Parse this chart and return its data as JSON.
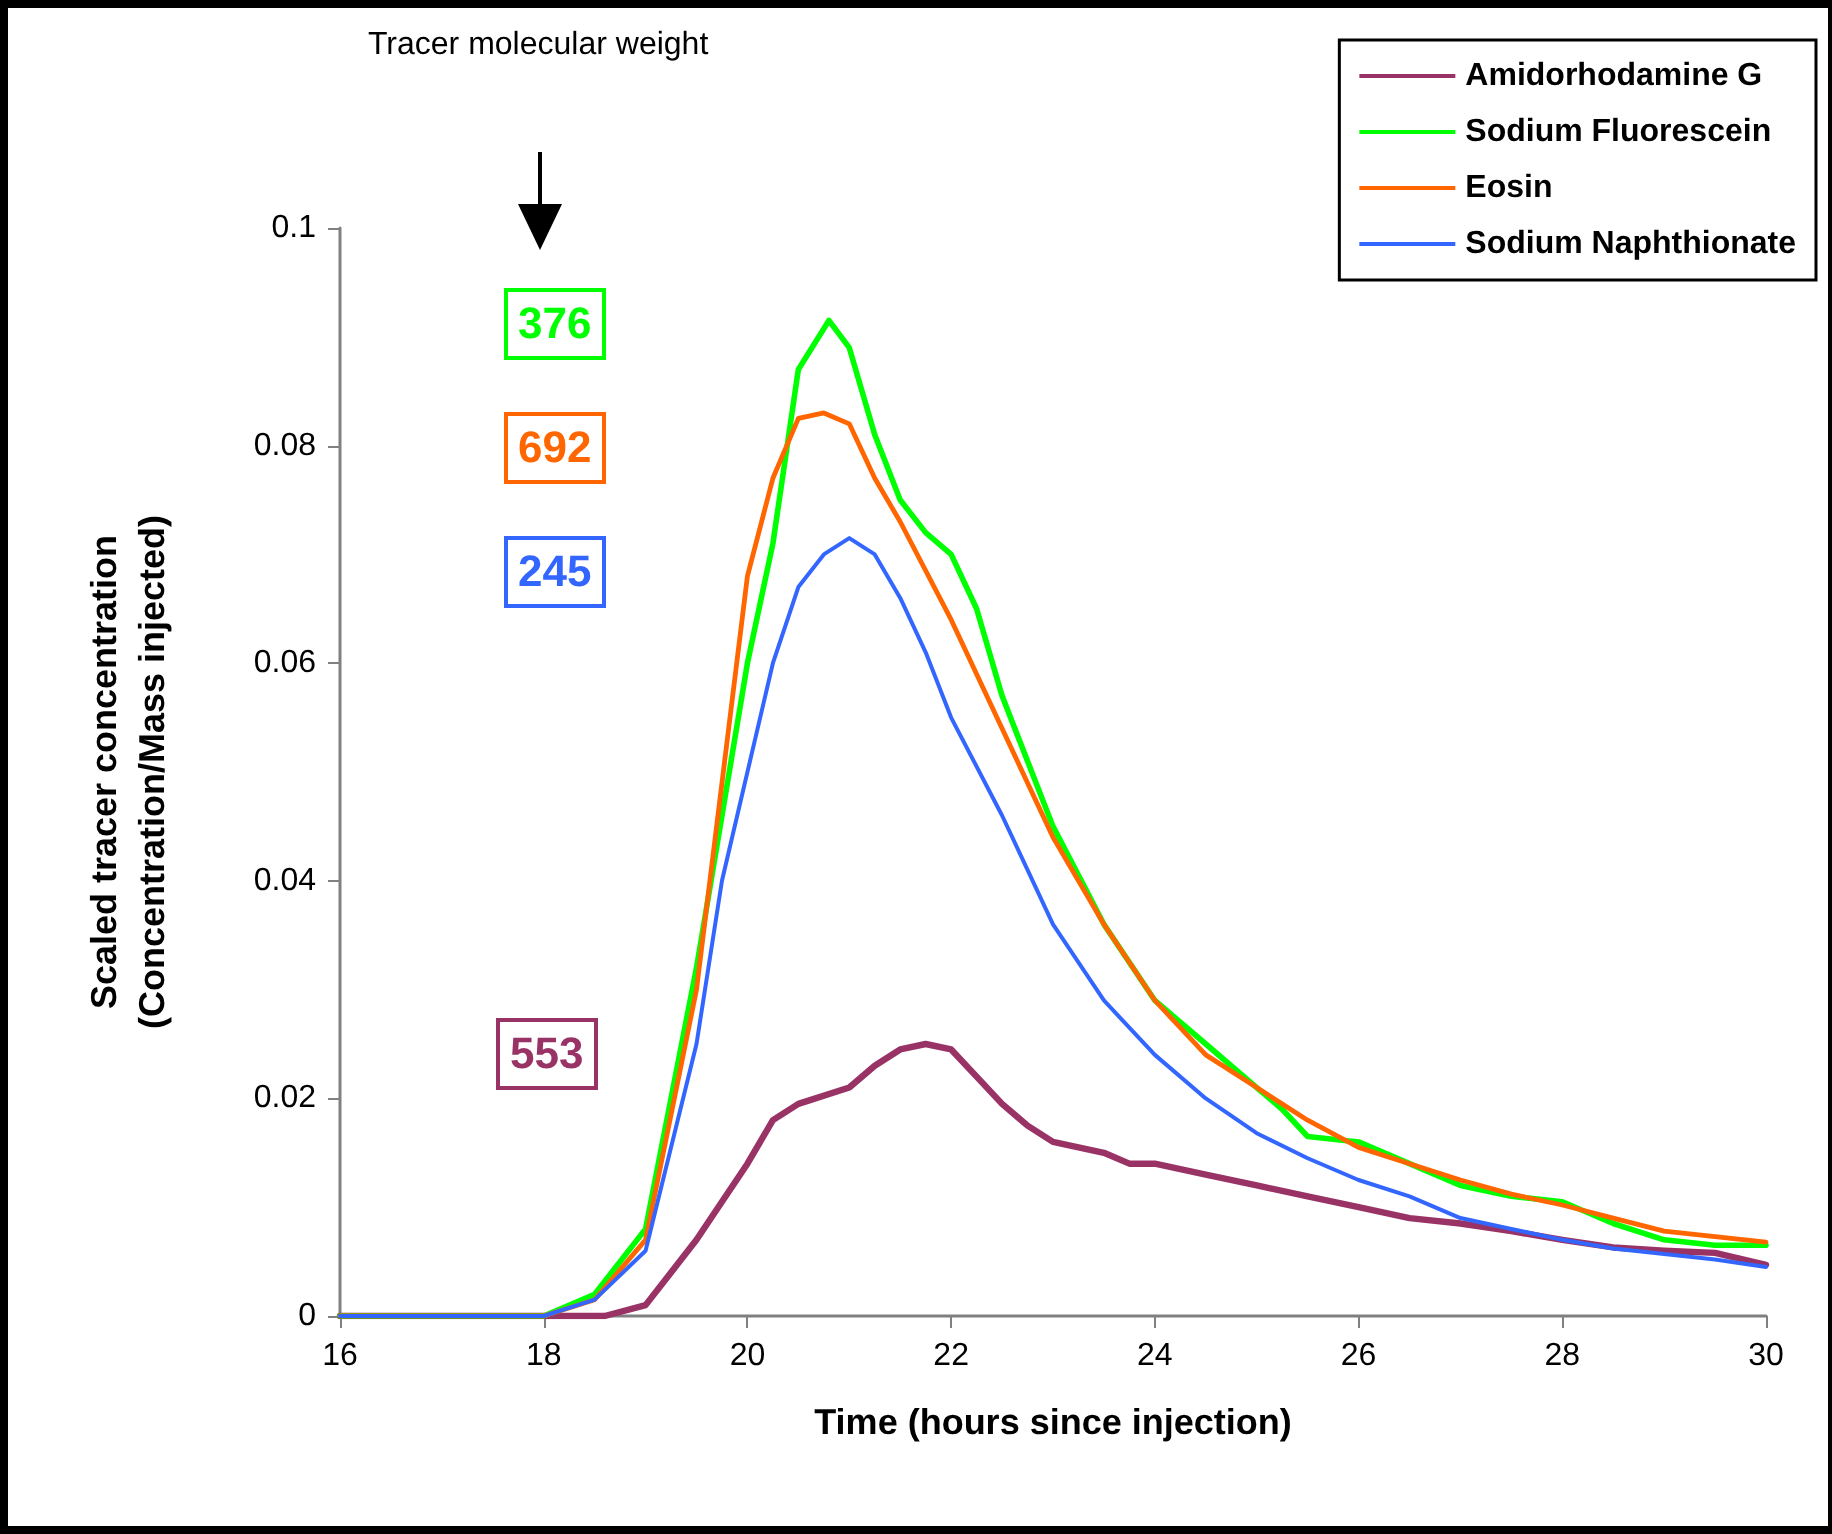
{
  "chart_data": {
    "type": "line",
    "xlabel": "Time (hours since injection)",
    "ylabel": "Scaled tracer concentration\n(Concentration/Mass injected)",
    "xlim": [
      16,
      30
    ],
    "xticks": [
      16,
      18,
      20,
      22,
      24,
      26,
      28,
      30
    ],
    "ylim": [
      0,
      0.1
    ],
    "yticks": [
      0,
      0.02,
      0.04,
      0.06,
      0.08,
      0.1
    ],
    "grid": false,
    "legend": "top right",
    "marker": "none",
    "line_style": "solid",
    "annotations": [
      "Tracer molecular weight",
      "376",
      "692",
      "245",
      "553"
    ],
    "series": [
      {
        "name": "Amidorhodamine G",
        "color": "#993366",
        "x": [
          16,
          18,
          18.6,
          19,
          19.25,
          19.5,
          20,
          20.25,
          20.5,
          21,
          21.25,
          21.5,
          21.75,
          22,
          22.25,
          22.5,
          22.75,
          23,
          23.5,
          23.75,
          24,
          24.5,
          25,
          25.5,
          26,
          26.5,
          27,
          27.5,
          28,
          28.5,
          29,
          29.5,
          30
        ],
        "values": [
          0,
          0,
          0,
          0.001,
          0.004,
          0.007,
          0.014,
          0.018,
          0.0195,
          0.021,
          0.023,
          0.0245,
          0.025,
          0.0245,
          0.022,
          0.0195,
          0.0175,
          0.016,
          0.015,
          0.014,
          0.014,
          0.013,
          0.012,
          0.011,
          0.01,
          0.009,
          0.0085,
          0.0078,
          0.007,
          0.0063,
          0.006,
          0.0058,
          0.0047
        ]
      },
      {
        "name": "Sodium Fluorescein",
        "color": "#00ff00",
        "x": [
          16,
          18,
          18.5,
          19,
          19.5,
          20,
          20.25,
          20.5,
          20.8,
          21,
          21.25,
          21.5,
          21.75,
          22,
          22.25,
          22.5,
          23,
          23.5,
          24,
          24.5,
          25,
          25.25,
          25.5,
          26,
          26.5,
          27,
          27.5,
          28,
          28.5,
          29,
          29.5,
          30
        ],
        "values": [
          0,
          0,
          0.002,
          0.008,
          0.032,
          0.06,
          0.071,
          0.087,
          0.0915,
          0.089,
          0.081,
          0.075,
          0.072,
          0.07,
          0.065,
          0.057,
          0.045,
          0.036,
          0.029,
          0.025,
          0.021,
          0.019,
          0.0165,
          0.016,
          0.014,
          0.012,
          0.011,
          0.0105,
          0.0085,
          0.007,
          0.0065,
          0.0065
        ]
      },
      {
        "name": "Eosin",
        "color": "#ff6600",
        "x": [
          16,
          18,
          18.5,
          19,
          19.5,
          20,
          20.25,
          20.5,
          20.75,
          21,
          21.25,
          21.5,
          22,
          22.5,
          23,
          23.5,
          24,
          24.5,
          25,
          25.5,
          26,
          26.5,
          27,
          27.5,
          28,
          28.5,
          29,
          29.5,
          30
        ],
        "values": [
          0,
          0,
          0.0015,
          0.007,
          0.03,
          0.068,
          0.077,
          0.0825,
          0.083,
          0.082,
          0.077,
          0.073,
          0.064,
          0.054,
          0.044,
          0.036,
          0.029,
          0.024,
          0.021,
          0.018,
          0.0155,
          0.014,
          0.0125,
          0.0112,
          0.0102,
          0.009,
          0.0078,
          0.0073,
          0.0068
        ]
      },
      {
        "name": "Sodium Naphthionate",
        "color": "#3366ff",
        "x": [
          16,
          18,
          18.5,
          19,
          19.5,
          19.75,
          20,
          20.25,
          20.5,
          20.75,
          21,
          21.25,
          21.5,
          21.75,
          22,
          22.5,
          23,
          23.5,
          24,
          24.5,
          25,
          25.5,
          26,
          26.5,
          27,
          27.5,
          28,
          28.5,
          29,
          29.5,
          30
        ],
        "values": [
          0,
          0,
          0.0015,
          0.006,
          0.025,
          0.04,
          0.05,
          0.06,
          0.067,
          0.07,
          0.0715,
          0.07,
          0.066,
          0.061,
          0.055,
          0.046,
          0.036,
          0.029,
          0.024,
          0.02,
          0.0168,
          0.0145,
          0.0125,
          0.011,
          0.009,
          0.008,
          0.007,
          0.0062,
          0.0057,
          0.0052,
          0.0045
        ]
      }
    ]
  }
}
